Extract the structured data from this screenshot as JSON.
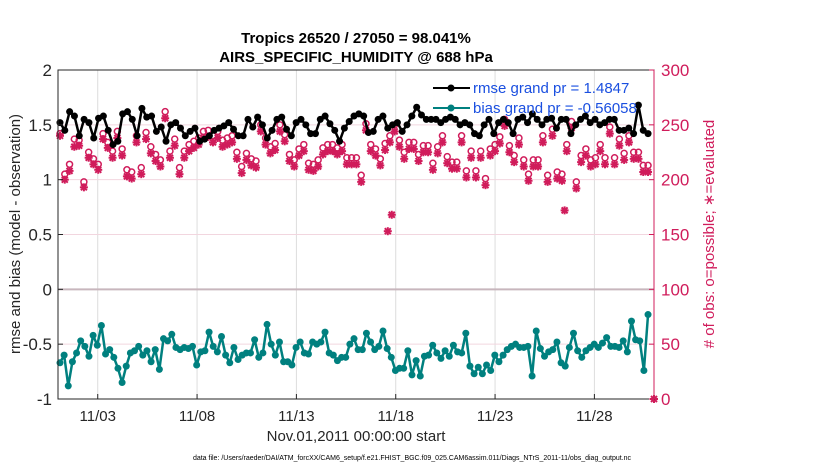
{
  "chart_data": {
    "type": "line",
    "title": [
      "Tropics 26520 / 27050 = 98.041%",
      "AIRS_SPECIFIC_HUMIDITY @ 688 hPa"
    ],
    "xlabel": "Nov.01,2011 00:00:00 start",
    "ylabel": "rmse and bias (model - observation)",
    "y2label": "# of obs: o=possible; ∗=evaluated",
    "footnote": "data file: /Users/raeder/DAI/ATM_forcXX/CAM6_setup/f.e21.FHIST_BGC.f09_025.CAM6assim.011/Diags_NTrS_2011-11/obs_diag_output.nc",
    "xlim": [
      1,
      31
    ],
    "ylim": [
      -1,
      2
    ],
    "y2lim": [
      0,
      300
    ],
    "xticks": [
      3,
      8,
      13,
      18,
      23,
      28
    ],
    "xticklabels": [
      "11/03",
      "11/08",
      "11/13",
      "11/18",
      "11/23",
      "11/28"
    ],
    "yticks": [
      -1,
      -0.5,
      0,
      0.5,
      1,
      1.5,
      2
    ],
    "yticklabels": [
      "-1",
      "-0.5",
      "0",
      "0.5",
      "1",
      "1.5",
      "2"
    ],
    "y2ticks": [
      0,
      50,
      100,
      150,
      200,
      250,
      300
    ],
    "y2ticklabels": [
      "0",
      "50",
      "100",
      "150",
      "200",
      "250",
      "300"
    ],
    "grid": true,
    "legend_position": "top-right",
    "colors": {
      "rmse": "#000000",
      "bias": "#00807f",
      "obs": "#d01c5b",
      "legend_text": "#1a4fe0",
      "zero_line": "#c8b6bd"
    },
    "series": [
      {
        "name": "rmse grand pr = 1.4847",
        "axis": "left",
        "values": [
          1.52,
          1.45,
          1.62,
          1.58,
          1.4,
          1.55,
          1.52,
          1.38,
          1.56,
          1.58,
          1.45,
          1.32,
          1.35,
          1.6,
          1.62,
          1.55,
          1.4,
          1.65,
          1.57,
          1.58,
          1.44,
          1.48,
          1.35,
          1.5,
          1.52,
          1.47,
          1.4,
          1.44,
          1.47,
          1.35,
          1.37,
          1.4,
          1.45,
          1.47,
          1.49,
          1.52,
          1.46,
          1.4,
          1.4,
          1.55,
          1.48,
          1.57,
          1.5,
          1.38,
          1.45,
          1.55,
          1.57,
          1.46,
          1.4,
          1.52,
          1.55,
          1.5,
          1.42,
          1.42,
          1.55,
          1.58,
          1.51,
          1.45,
          1.35,
          1.47,
          1.53,
          1.58,
          1.6,
          1.58,
          1.43,
          1.44,
          1.55,
          1.58,
          1.47,
          1.5,
          1.52,
          1.44,
          1.5,
          1.58,
          1.66,
          1.59,
          1.55,
          1.55,
          1.55,
          1.52,
          1.55,
          1.57,
          1.55,
          1.5,
          1.52,
          1.5,
          1.42,
          1.4,
          1.5,
          1.55,
          1.42,
          1.52,
          1.55,
          1.52,
          1.42,
          1.55,
          1.57,
          1.52,
          1.6,
          1.55,
          1.5,
          1.55,
          1.56,
          1.47,
          1.55,
          1.55,
          1.42,
          1.5,
          1.55,
          1.58,
          1.52,
          1.55,
          1.5,
          1.52,
          1.55,
          1.55,
          1.45,
          1.45,
          1.47,
          1.42,
          1.68,
          1.45,
          1.42
        ]
      },
      {
        "name": "bias grand pr = -0.56058",
        "axis": "left",
        "values": [
          -0.67,
          -0.6,
          -0.88,
          -0.66,
          -0.58,
          -0.47,
          -0.52,
          -0.61,
          -0.42,
          -0.51,
          -0.33,
          -0.59,
          -0.55,
          -0.62,
          -0.72,
          -0.85,
          -0.7,
          -0.58,
          -0.56,
          -0.52,
          -0.6,
          -0.56,
          -0.66,
          -0.55,
          -0.73,
          -0.45,
          -0.47,
          -0.41,
          -0.53,
          -0.55,
          -0.53,
          -0.54,
          -0.52,
          -0.69,
          -0.57,
          -0.56,
          -0.39,
          -0.52,
          -0.57,
          -0.43,
          -0.6,
          -0.67,
          -0.53,
          -0.64,
          -0.6,
          -0.58,
          -0.58,
          -0.46,
          -0.62,
          -0.58,
          -0.32,
          -0.5,
          -0.6,
          -0.48,
          -0.66,
          -0.66,
          -0.69,
          -0.53,
          -0.48,
          -0.58,
          -0.59,
          -0.48,
          -0.5,
          -0.48,
          -0.39,
          -0.58,
          -0.6,
          -0.65,
          -0.62,
          -0.62,
          -0.5,
          -0.45,
          -0.55,
          -0.55,
          -0.4,
          -0.48,
          -0.55,
          -0.52,
          -0.38,
          -0.54,
          -0.62,
          -0.74,
          -0.72,
          -0.72,
          -0.56,
          -0.78,
          -0.65,
          -0.79,
          -0.61,
          -0.6,
          -0.51,
          -0.58,
          -0.63,
          -0.56,
          -0.61,
          -0.51,
          -0.57,
          -0.58,
          -0.4,
          -0.7,
          -0.77,
          -0.71,
          -0.77,
          -0.69,
          -0.74,
          -0.6,
          -0.66,
          -0.6,
          -0.55,
          -0.52,
          -0.5,
          -0.53,
          -0.53,
          -0.52,
          -0.79,
          -0.38,
          -0.54,
          -0.61,
          -0.57,
          -0.55,
          -0.48,
          -0.67,
          -0.7,
          -0.53,
          -0.4,
          -0.56,
          -0.62,
          -0.56,
          -0.53,
          -0.5,
          -0.53,
          -0.49,
          -0.44,
          -0.52,
          -0.52,
          -0.53,
          -0.47,
          -0.57,
          -0.29,
          -0.46,
          -0.47,
          -0.74,
          -0.23
        ]
      },
      {
        "name": "obs possible",
        "axis": "right",
        "marker": "o",
        "values": [
          242,
          205,
          214,
          237,
          236,
          198,
          225,
          219,
          214,
          242,
          234,
          226,
          244,
          228,
          209,
          207,
          240,
          211,
          243,
          230,
          223,
          218,
          262,
          226,
          237,
          211,
          226,
          232,
          235,
          238,
          244,
          245,
          240,
          244,
          236,
          238,
          240,
          225,
          212,
          224,
          219,
          217,
          250,
          238,
          230,
          233,
          250,
          241,
          223,
          218,
          228,
          232,
          215,
          214,
          218,
          229,
          232,
          232,
          229,
          232,
          220,
          220,
          220,
          204,
          251,
          232,
          228,
          219,
          233,
          240,
          250,
          236,
          225,
          234,
          234,
          223,
          231,
          231,
          215,
          230,
          240,
          221,
          216,
          216,
          240,
          208,
          226,
          208,
          226,
          201,
          228,
          232,
          239,
          255,
          231,
          222,
          238,
          218,
          205,
          218,
          218,
          240,
          204,
          246,
          207,
          205,
          232,
          253,
          198,
          222,
          228,
          218,
          220,
          232,
          220,
          248,
          220,
          237,
          224,
          240,
          225,
          225,
          213,
          213
        ]
      },
      {
        "name": "obs evaluated",
        "axis": "right",
        "marker": "*",
        "values": [
          240,
          200,
          208,
          230,
          231,
          193,
          220,
          214,
          209,
          237,
          229,
          220,
          238,
          222,
          203,
          201,
          234,
          205,
          237,
          224,
          217,
          212,
          256,
          220,
          231,
          205,
          220,
          226,
          229,
          232,
          238,
          239,
          234,
          238,
          230,
          232,
          234,
          219,
          206,
          218,
          213,
          211,
          244,
          232,
          224,
          227,
          244,
          235,
          217,
          212,
          222,
          226,
          209,
          208,
          212,
          223,
          226,
          226,
          223,
          226,
          214,
          214,
          214,
          198,
          245,
          226,
          222,
          213,
          227,
          234,
          244,
          230,
          219,
          228,
          228,
          217,
          225,
          225,
          209,
          224,
          234,
          215,
          210,
          210,
          234,
          202,
          220,
          202,
          220,
          195,
          222,
          226,
          233,
          249,
          225,
          216,
          232,
          212,
          199,
          212,
          212,
          234,
          198,
          240,
          201,
          199,
          226,
          247,
          192,
          216,
          222,
          212,
          214,
          226,
          214,
          242,
          214,
          231,
          218,
          234,
          219,
          219,
          207,
          207
        ]
      }
    ],
    "annotations": {
      "obs_outliers": [
        {
          "x": 17.6,
          "possible": null,
          "evaluated": 153
        },
        {
          "x": 17.8,
          "possible": null,
          "evaluated": 168
        },
        {
          "x": 26.5,
          "possible": null,
          "evaluated": 172
        },
        {
          "x": 31,
          "possible": 0,
          "evaluated": 0
        }
      ]
    }
  }
}
